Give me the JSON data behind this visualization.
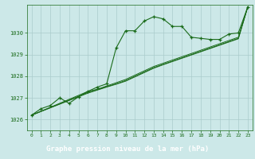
{
  "xlabel": "Graphe pression niveau de la mer (hPa)",
  "xlim": [
    -0.5,
    23.5
  ],
  "ylim": [
    1025.5,
    1031.3
  ],
  "yticks": [
    1026,
    1027,
    1028,
    1029,
    1030
  ],
  "xticks": [
    0,
    1,
    2,
    3,
    4,
    5,
    6,
    7,
    8,
    9,
    10,
    11,
    12,
    13,
    14,
    15,
    16,
    17,
    18,
    19,
    20,
    21,
    22,
    23
  ],
  "background_color": "#cce8e8",
  "grid_color": "#aacccc",
  "line_color": "#1a6b1a",
  "label_bg": "#2a5a2a",
  "label_fg": "#ffffff",
  "series1": {
    "x": [
      0,
      1,
      2,
      3,
      4,
      5,
      6,
      7,
      8,
      9,
      10,
      11,
      12,
      13,
      14,
      15,
      16,
      17,
      18,
      19,
      20,
      21,
      22,
      23
    ],
    "y": [
      1026.2,
      1026.5,
      1026.65,
      1027.0,
      1026.75,
      1027.05,
      1027.3,
      1027.5,
      1027.65,
      1029.3,
      1030.1,
      1030.1,
      1030.55,
      1030.75,
      1030.65,
      1030.3,
      1030.3,
      1029.8,
      1029.75,
      1029.7,
      1029.7,
      1029.95,
      1030.0,
      1031.2
    ]
  },
  "series2": {
    "x": [
      0,
      6,
      7,
      8,
      9,
      10,
      11,
      12,
      13,
      14,
      15,
      16,
      17,
      18,
      19,
      20,
      21,
      22,
      23
    ],
    "y": [
      1026.2,
      1027.3,
      1027.4,
      1027.55,
      1027.7,
      1027.85,
      1028.05,
      1028.25,
      1028.45,
      1028.6,
      1028.75,
      1028.9,
      1029.05,
      1029.2,
      1029.35,
      1029.5,
      1029.65,
      1029.8,
      1031.2
    ]
  },
  "series3": {
    "x": [
      0,
      6,
      7,
      8,
      9,
      10,
      11,
      12,
      13,
      14,
      15,
      16,
      17,
      18,
      19,
      20,
      21,
      22,
      23
    ],
    "y": [
      1026.2,
      1027.25,
      1027.38,
      1027.52,
      1027.65,
      1027.8,
      1028.0,
      1028.2,
      1028.4,
      1028.55,
      1028.7,
      1028.85,
      1029.0,
      1029.15,
      1029.3,
      1029.45,
      1029.6,
      1029.75,
      1031.2
    ]
  },
  "series4": {
    "x": [
      0,
      6,
      7,
      8,
      9,
      10,
      11,
      12,
      13,
      14,
      15,
      16,
      17,
      18,
      19,
      20,
      21,
      22,
      23
    ],
    "y": [
      1026.2,
      1027.22,
      1027.36,
      1027.5,
      1027.63,
      1027.77,
      1027.97,
      1028.17,
      1028.37,
      1028.53,
      1028.68,
      1028.83,
      1028.98,
      1029.13,
      1029.28,
      1029.43,
      1029.58,
      1029.73,
      1031.2
    ]
  }
}
